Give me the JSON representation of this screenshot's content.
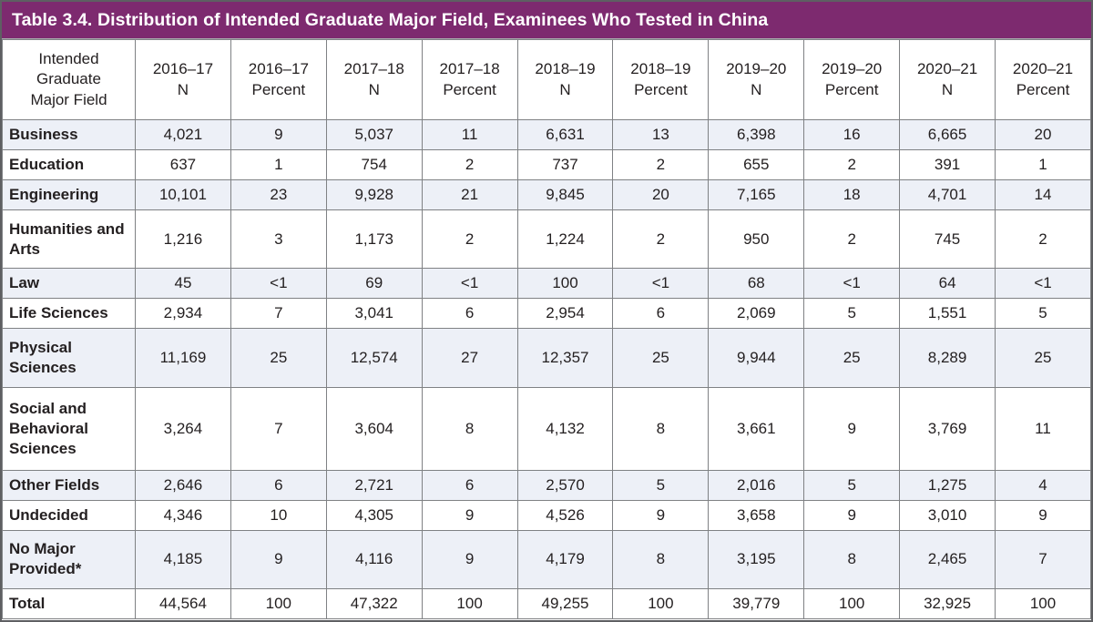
{
  "colors": {
    "title_bar_bg": "#7d2a6f",
    "title_text": "#ffffff",
    "shaded_row_bg": "#edf0f7",
    "white_row_bg": "#ffffff",
    "grid_border": "#7f8184",
    "outer_border": "#5e5f62",
    "body_text": "#231f20"
  },
  "chart_data": {
    "type": "table",
    "title": "Table 3.4. Distribution of Intended Graduate Major Field, Examinees Who Tested in China",
    "row_header_label": "Intended Graduate Major Field",
    "columns": [
      {
        "year": "2016–17",
        "metric": "N"
      },
      {
        "year": "2016–17",
        "metric": "Percent"
      },
      {
        "year": "2017–18",
        "metric": "N"
      },
      {
        "year": "2017–18",
        "metric": "Percent"
      },
      {
        "year": "2018–19",
        "metric": "N"
      },
      {
        "year": "2018–19",
        "metric": "Percent"
      },
      {
        "year": "2019–20",
        "metric": "N"
      },
      {
        "year": "2019–20",
        "metric": "Percent"
      },
      {
        "year": "2020–21",
        "metric": "N"
      },
      {
        "year": "2020–21",
        "metric": "Percent"
      }
    ],
    "rows": [
      {
        "label": "Business",
        "shaded": true,
        "values": [
          "4,021",
          "9",
          "5,037",
          "11",
          "6,631",
          "13",
          "6,398",
          "16",
          "6,665",
          "20"
        ]
      },
      {
        "label": "Education",
        "shaded": false,
        "values": [
          "637",
          "1",
          "754",
          "2",
          "737",
          "2",
          "655",
          "2",
          "391",
          "1"
        ]
      },
      {
        "label": "Engineering",
        "shaded": true,
        "values": [
          "10,101",
          "23",
          "9,928",
          "21",
          "9,845",
          "20",
          "7,165",
          "18",
          "4,701",
          "14"
        ]
      },
      {
        "label": "Humanities and Arts",
        "shaded": false,
        "values": [
          "1,216",
          "3",
          "1,173",
          "2",
          "1,224",
          "2",
          "950",
          "2",
          "745",
          "2"
        ]
      },
      {
        "label": "Law",
        "shaded": true,
        "values": [
          "45",
          "<1",
          "69",
          "<1",
          "100",
          "<1",
          "68",
          "<1",
          "64",
          "<1"
        ]
      },
      {
        "label": "Life Sciences",
        "shaded": false,
        "values": [
          "2,934",
          "7",
          "3,041",
          "6",
          "2,954",
          "6",
          "2,069",
          "5",
          "1,551",
          "5"
        ]
      },
      {
        "label": "Physical Sciences",
        "shaded": true,
        "values": [
          "11,169",
          "25",
          "12,574",
          "27",
          "12,357",
          "25",
          "9,944",
          "25",
          "8,289",
          "25"
        ]
      },
      {
        "label": "Social and Behavioral Sciences",
        "shaded": false,
        "values": [
          "3,264",
          "7",
          "3,604",
          "8",
          "4,132",
          "8",
          "3,661",
          "9",
          "3,769",
          "11"
        ]
      },
      {
        "label": "Other Fields",
        "shaded": true,
        "values": [
          "2,646",
          "6",
          "2,721",
          "6",
          "2,570",
          "5",
          "2,016",
          "5",
          "1,275",
          "4"
        ]
      },
      {
        "label": "Undecided",
        "shaded": false,
        "values": [
          "4,346",
          "10",
          "4,305",
          "9",
          "4,526",
          "9",
          "3,658",
          "9",
          "3,010",
          "9"
        ]
      },
      {
        "label": "No Major Provided*",
        "shaded": true,
        "values": [
          "4,185",
          "9",
          "4,116",
          "9",
          "4,179",
          "8",
          "3,195",
          "8",
          "2,465",
          "7"
        ]
      },
      {
        "label": "Total",
        "shaded": false,
        "values": [
          "44,564",
          "100",
          "47,322",
          "100",
          "49,255",
          "100",
          "39,779",
          "100",
          "32,925",
          "100"
        ]
      }
    ]
  }
}
